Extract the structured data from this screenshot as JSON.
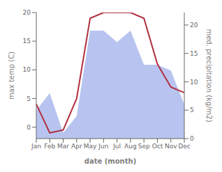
{
  "chart_data": {
    "type": "line",
    "categories": [
      "Jan",
      "Feb",
      "Mar",
      "Apr",
      "May",
      "Jun",
      "Jul",
      "Aug",
      "Sep",
      "Oct",
      "Nov",
      "Dec"
    ],
    "xlabel": "date (month)",
    "ylabel": "max temp (C)",
    "y2label": "med. precipitation (kg/m2)",
    "ylim": [
      -2,
      20
    ],
    "yticks": [
      0,
      5,
      10,
      15,
      20
    ],
    "y2lim": [
      0,
      22.2
    ],
    "y2ticks": [
      0,
      5,
      10,
      15,
      20
    ],
    "grid": false,
    "series": [
      {
        "type": "area",
        "axis": "y2",
        "color": "#b8c4ef",
        "values": [
          5,
          8,
          1,
          4,
          19,
          19,
          17,
          19,
          13,
          13,
          12,
          6
        ]
      },
      {
        "type": "line",
        "color": "#b03040",
        "values": [
          4,
          -1,
          -0.5,
          5,
          19,
          20,
          20,
          20,
          19,
          11,
          7,
          6
        ]
      }
    ]
  }
}
